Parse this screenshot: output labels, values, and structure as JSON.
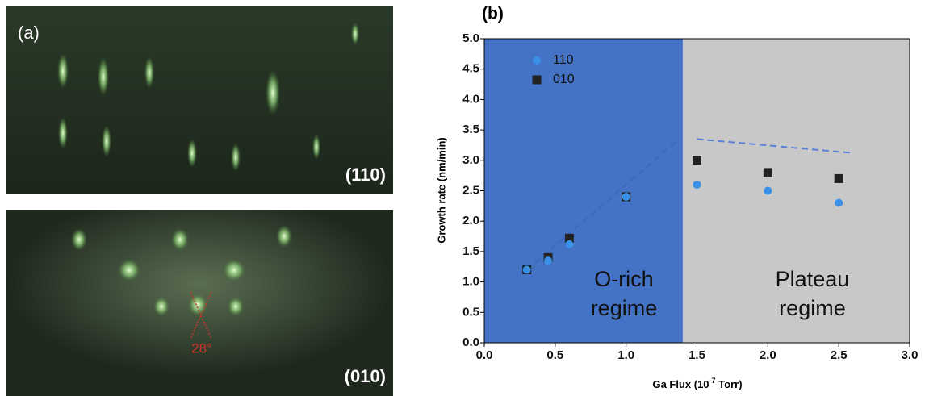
{
  "panel_a": {
    "label": "(a)",
    "top_label": "(110)",
    "bottom_label": "(010)",
    "angle_label": "28°"
  },
  "chart_data": {
    "type": "scatter",
    "panel_label": "(b)",
    "xlabel": {
      "main": "Ga Flux (10",
      "sup": "-7",
      "tail": " Torr)"
    },
    "ylabel": "Growth rate (nm/min)",
    "xlim": [
      0,
      3.0
    ],
    "ylim": [
      0,
      5.0
    ],
    "xticks": [
      {
        "value": 0,
        "label": "0.0"
      },
      0.5,
      {
        "value": 1,
        "label": "1.0"
      },
      1.5,
      {
        "value": 2,
        "label": "2.0"
      },
      2.5,
      {
        "value": 3,
        "label": "3.0"
      }
    ],
    "yticks": [
      {
        "value": 0,
        "label": "0.0"
      },
      0.5,
      {
        "value": 1,
        "label": "1.0"
      },
      1.5,
      {
        "value": 2,
        "label": "2.0"
      },
      2.5,
      {
        "value": 3,
        "label": "3.0"
      },
      3.5,
      {
        "value": 4,
        "label": "4.0"
      },
      4.5,
      {
        "value": 5,
        "label": "5.0"
      }
    ],
    "legend": "upper left",
    "regions": [
      {
        "xlim": [
          0,
          1.4
        ],
        "color": "#4472c4",
        "text": [
          "O-rich",
          "regime"
        ]
      },
      {
        "xlim": [
          1.4,
          3.0
        ],
        "color": "#c8c8c8",
        "text": [
          "Plateau",
          "regime"
        ]
      }
    ],
    "fit_lines": [
      {
        "color": "#3d67c0",
        "x": [
          0.3,
          1.35
        ],
        "y": [
          1.2,
          3.3
        ]
      },
      {
        "color": "#5b80d8",
        "x": [
          1.5,
          2.6
        ],
        "y": [
          3.35,
          3.12
        ]
      }
    ],
    "series": [
      {
        "name": "110",
        "color": "#3a8fe6",
        "marker": "circle",
        "x": [
          0.3,
          0.45,
          0.6,
          1.0,
          1.5,
          2.0,
          2.5
        ],
        "values": [
          1.2,
          1.35,
          1.62,
          2.4,
          2.6,
          2.5,
          2.3
        ]
      },
      {
        "name": "010",
        "color": "#222222",
        "marker": "square",
        "x": [
          0.3,
          0.45,
          0.6,
          1.0,
          1.5,
          2.0,
          2.5
        ],
        "values": [
          1.2,
          1.4,
          1.72,
          2.4,
          3.0,
          2.8,
          2.7
        ]
      }
    ]
  }
}
